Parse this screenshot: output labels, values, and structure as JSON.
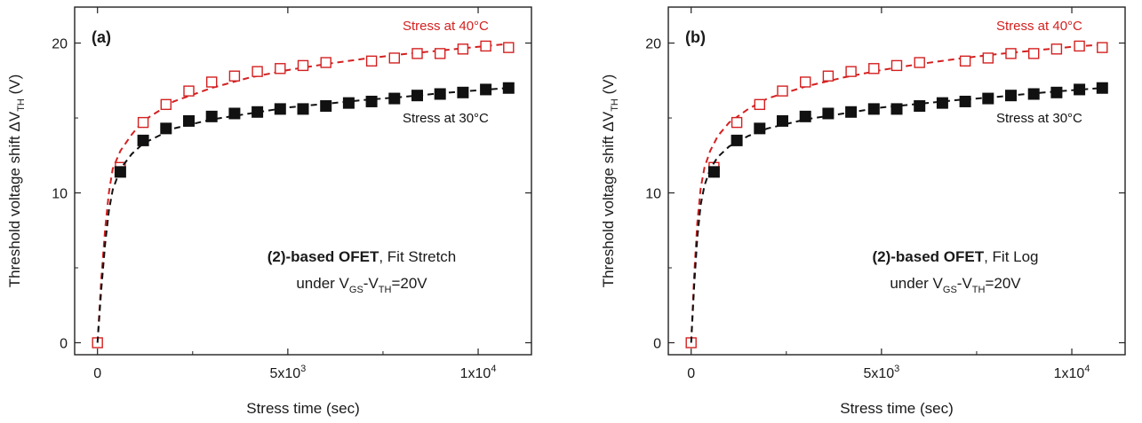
{
  "chart_data": [
    {
      "type": "scatter",
      "panel_label": "(a)",
      "xlabel": "Stress time (sec)",
      "ylabel": "Threshold voltage shift ΔV",
      "ylabel_sub": "TH",
      "ylabel_unit": " (V)",
      "xlim": [
        -600,
        11400
      ],
      "ylim": [
        -0.8,
        22.4
      ],
      "xticks": [
        {
          "v": 0,
          "base": "0"
        },
        {
          "v": 5000,
          "base": "5x10",
          "sup": "3"
        },
        {
          "v": 10000,
          "base": "1x10",
          "sup": "4"
        }
      ],
      "yticks": [
        0,
        10,
        20
      ],
      "annotation": {
        "bold": "(2)-based OFET",
        "rest": ", Fit Stretch",
        "cond_prefix": "under  V",
        "cond_sub1": "GS",
        "cond_mid": "-V",
        "cond_sub2": "TH",
        "cond_suffix": "=20V"
      },
      "series": [
        {
          "name": "Stress at 40°C",
          "color": "#d42020",
          "marker": "open-square",
          "x": [
            0,
            600,
            1200,
            1800,
            2400,
            3000,
            3600,
            4200,
            4800,
            5400,
            6000,
            7200,
            7800,
            8400,
            9000,
            9600,
            10200,
            10800
          ],
          "y": [
            0,
            11.7,
            14.7,
            15.9,
            16.8,
            17.4,
            17.8,
            18.1,
            18.3,
            18.5,
            18.7,
            18.8,
            19.0,
            19.3,
            19.3,
            19.6,
            19.8,
            19.7
          ],
          "fit": {
            "x": [
              0,
              100,
              200,
              300,
              400,
              600,
              900,
              1200,
              2000,
              3000,
              4000,
              5000,
              6000,
              7000,
              8000,
              9000,
              10000,
              10800
            ],
            "y": [
              0,
              4.3,
              7.6,
              10.0,
              11.6,
              12.8,
              13.9,
              14.8,
              16.1,
              17.0,
              17.7,
              18.2,
              18.6,
              18.95,
              19.25,
              19.5,
              19.75,
              19.95
            ]
          }
        },
        {
          "name": "Stress at 30°C",
          "color": "#111111",
          "marker": "filled-square",
          "x": [
            600,
            1200,
            1800,
            2400,
            3000,
            3600,
            4200,
            4800,
            5400,
            6000,
            6600,
            7200,
            7800,
            8400,
            9000,
            9600,
            10200,
            10800
          ],
          "y": [
            11.4,
            13.5,
            14.3,
            14.8,
            15.1,
            15.3,
            15.4,
            15.6,
            15.6,
            15.8,
            16.0,
            16.1,
            16.3,
            16.5,
            16.6,
            16.7,
            16.9,
            17.0
          ],
          "fit": {
            "x": [
              0,
              100,
              200,
              300,
              400,
              600,
              900,
              1200,
              2000,
              3000,
              4000,
              5000,
              6000,
              7000,
              8000,
              9000,
              10000,
              10800
            ],
            "y": [
              0,
              3.6,
              6.6,
              8.8,
              10.2,
              11.6,
              12.6,
              13.3,
              14.3,
              14.9,
              15.3,
              15.7,
              15.95,
              16.2,
              16.4,
              16.65,
              16.85,
              17.0
            ]
          }
        }
      ]
    },
    {
      "type": "scatter",
      "panel_label": "(b)",
      "xlabel": "Stress time (sec)",
      "ylabel": "Threshold voltage shift  ΔV",
      "ylabel_sub": "TH",
      "ylabel_unit": " (V)",
      "xlim": [
        -600,
        11400
      ],
      "ylim": [
        -0.8,
        22.4
      ],
      "xticks": [
        {
          "v": 0,
          "base": "0"
        },
        {
          "v": 5000,
          "base": "5x10",
          "sup": "3"
        },
        {
          "v": 10000,
          "base": "1x10",
          "sup": "4"
        }
      ],
      "yticks": [
        0,
        10,
        20
      ],
      "annotation": {
        "bold": "(2)-based OFET",
        "rest": ", Fit Log",
        "cond_prefix": "under  V",
        "cond_sub1": "GS",
        "cond_mid": "-V",
        "cond_sub2": "TH",
        "cond_suffix": "=20V"
      },
      "series": [
        {
          "name": "Stress at 40°C",
          "color": "#d42020",
          "marker": "open-square",
          "x": [
            0,
            600,
            1200,
            1800,
            2400,
            3000,
            3600,
            4200,
            4800,
            5400,
            6000,
            7200,
            7800,
            8400,
            9000,
            9600,
            10200,
            10800
          ],
          "y": [
            0,
            11.7,
            14.7,
            15.9,
            16.8,
            17.4,
            17.8,
            18.1,
            18.3,
            18.5,
            18.7,
            18.8,
            19.0,
            19.3,
            19.3,
            19.6,
            19.8,
            19.7
          ],
          "fit": {
            "x": [
              0,
              80,
              160,
              250,
              350,
              500,
              700,
              1000,
              1500,
              2000,
              3000,
              4000,
              5000,
              6000,
              7000,
              8000,
              9000,
              10000,
              10800
            ],
            "y": [
              0,
              4.5,
              8.0,
              10.3,
              11.7,
              12.8,
              13.8,
              14.7,
              15.6,
              16.3,
              17.1,
              17.7,
              18.2,
              18.6,
              18.95,
              19.25,
              19.5,
              19.75,
              19.9
            ]
          }
        },
        {
          "name": "Stress at 30°C",
          "color": "#111111",
          "marker": "filled-square",
          "x": [
            600,
            1200,
            1800,
            2400,
            3000,
            3600,
            4200,
            4800,
            5400,
            6000,
            6600,
            7200,
            7800,
            8400,
            9000,
            9600,
            10200,
            10800
          ],
          "y": [
            11.4,
            13.5,
            14.3,
            14.8,
            15.1,
            15.3,
            15.4,
            15.6,
            15.6,
            15.8,
            16.0,
            16.1,
            16.3,
            16.5,
            16.6,
            16.7,
            16.9,
            17.0
          ],
          "fit": {
            "x": [
              0,
              80,
              160,
              250,
              350,
              500,
              700,
              1000,
              1500,
              2000,
              3000,
              4000,
              5000,
              6000,
              7000,
              8000,
              9000,
              10000,
              10800
            ],
            "y": [
              0,
              3.8,
              7.0,
              9.2,
              10.5,
              11.6,
              12.4,
              13.1,
              13.8,
              14.3,
              14.9,
              15.3,
              15.7,
              15.95,
              16.2,
              16.4,
              16.65,
              16.85,
              17.0
            ]
          }
        }
      ]
    }
  ]
}
